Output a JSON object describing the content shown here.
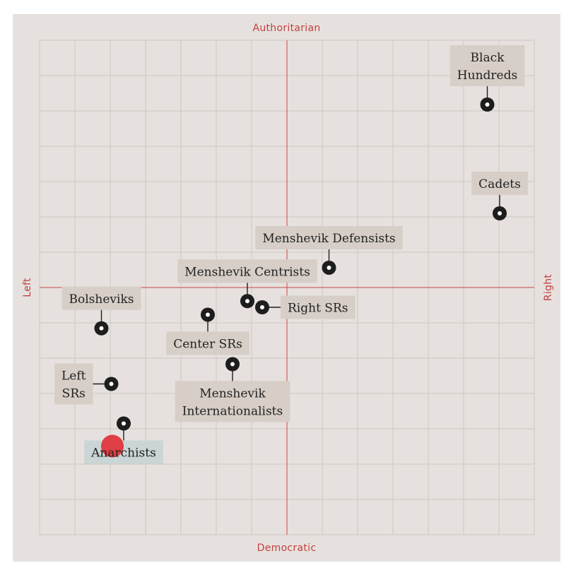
{
  "chart_data": {
    "type": "scatter",
    "title": "",
    "axis_labels": {
      "top": "Authoritarian",
      "bottom": "Democratic",
      "left": "Left",
      "right": "Right"
    },
    "xlim": [
      -10,
      10
    ],
    "ylim": [
      -10,
      10
    ],
    "grid": true,
    "grid_step": 1.43,
    "points": [
      {
        "name": "Black Hundreds",
        "label_lines": [
          "Black",
          "Hundreds"
        ],
        "x": 8.1,
        "y": 7.4,
        "label_pos": "above",
        "highlight": false
      },
      {
        "name": "Cadets",
        "label_lines": [
          "Cadets"
        ],
        "x": 8.6,
        "y": 3.0,
        "label_pos": "above",
        "highlight": false
      },
      {
        "name": "Menshevik Defensists",
        "label_lines": [
          "Menshevik Defensists"
        ],
        "x": 1.7,
        "y": 0.8,
        "label_pos": "above",
        "highlight": false
      },
      {
        "name": "Menshevik Centrists",
        "label_lines": [
          "Menshevik Centrists"
        ],
        "x": -1.6,
        "y": -0.55,
        "label_pos": "above",
        "highlight": false
      },
      {
        "name": "Right SRs",
        "label_lines": [
          "Right SRs"
        ],
        "x": -1.0,
        "y": -0.8,
        "label_pos": "right",
        "highlight": false
      },
      {
        "name": "Center SRs",
        "label_lines": [
          "Center SRs"
        ],
        "x": -3.2,
        "y": -1.1,
        "label_pos": "below",
        "highlight": false
      },
      {
        "name": "Bolsheviks",
        "label_lines": [
          "Bolsheviks"
        ],
        "x": -7.5,
        "y": -1.65,
        "label_pos": "above",
        "highlight": false
      },
      {
        "name": "Menshevik Internationalists",
        "label_lines": [
          "Menshevik",
          "Internationalists"
        ],
        "x": -2.2,
        "y": -3.1,
        "label_pos": "below",
        "highlight": false
      },
      {
        "name": "Left SRs",
        "label_lines": [
          "Left",
          "SRs"
        ],
        "x": -7.1,
        "y": -3.9,
        "label_pos": "left",
        "highlight": false
      },
      {
        "name": "Anarchists",
        "label_lines": [
          "Anarchists"
        ],
        "x": -6.6,
        "y": -5.5,
        "label_pos": "below",
        "highlight": true
      }
    ],
    "colors": {
      "panel": "#e6e1de",
      "grid": "#cfc7c2",
      "axis": "#c94848",
      "axis_text": "#c2403f",
      "marker": "#1d1d1d",
      "highlight": "#e0363d",
      "label_box": "#d6cec7",
      "label_box_highlight": "#c9d6d5"
    }
  }
}
